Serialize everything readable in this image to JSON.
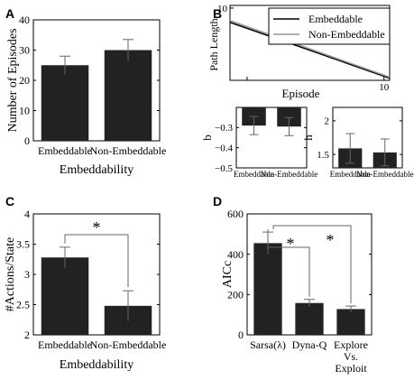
{
  "panels": [
    {
      "letter": "A"
    },
    {
      "letter": "B"
    },
    {
      "letter": "C"
    },
    {
      "letter": "D"
    }
  ],
  "chart_data": [
    {
      "id": "A",
      "type": "bar",
      "categories": [
        "Embeddable",
        "Non-Embeddable"
      ],
      "values": [
        25,
        30
      ],
      "errors": [
        3,
        3.5
      ],
      "ylim": [
        0,
        40
      ],
      "yticks": [
        0,
        10,
        20,
        30,
        40
      ],
      "ylabel": "Number of Episodes",
      "xlabel": "Embeddability"
    },
    {
      "id": "B-top",
      "type": "line",
      "scale": "log-log",
      "xlabel": "Episode",
      "ylabel": "Path Length",
      "xlim": [
        0.75,
        11
      ],
      "ylim": [
        0.75,
        11
      ],
      "yticks": [
        10
      ],
      "xticks": [
        1,
        10
      ],
      "xtick_labels": [
        "",
        "10"
      ],
      "legend_position": "top-right",
      "series": [
        {
          "name": "Embeddable",
          "color": "#000000",
          "x": [
            0.75,
            11
          ],
          "y": [
            6.0,
            0.81
          ]
        },
        {
          "name": "Non-Embeddable",
          "color": "#999999",
          "x": [
            0.75,
            11
          ],
          "y": [
            6.4,
            0.84
          ]
        }
      ]
    },
    {
      "id": "B-bottom-left",
      "type": "bar",
      "categories": [
        "Embeddable",
        "Non-Embeddable"
      ],
      "values": [
        -0.29,
        -0.295
      ],
      "errors": [
        0.045,
        0.045
      ],
      "ylim": [
        -0.5,
        -0.2
      ],
      "yticks": [
        -0.3,
        -0.4,
        -0.5
      ],
      "ylabel": "b"
    },
    {
      "id": "B-bottom-right",
      "type": "bar",
      "categories": [
        "Embeddable",
        "Non-Embeddable"
      ],
      "values": [
        1.59,
        1.53
      ],
      "errors": [
        0.22,
        0.2
      ],
      "ylim": [
        1.3,
        2.2
      ],
      "yticks": [
        1.5,
        2
      ],
      "ylabel": "h"
    },
    {
      "id": "C",
      "type": "bar",
      "categories": [
        "Embeddable",
        "Non-Embeddable"
      ],
      "values": [
        3.28,
        2.48
      ],
      "errors": [
        0.17,
        0.25
      ],
      "ylim": [
        2,
        4
      ],
      "yticks": [
        2,
        2.5,
        3,
        3.5,
        4
      ],
      "ylabel": "#Actions/State",
      "xlabel": "Embeddability",
      "significance": [
        {
          "from": 0,
          "to": 1,
          "label": "*"
        }
      ]
    },
    {
      "id": "D",
      "type": "bar",
      "categories": [
        "Sarsa(λ)",
        "Dyna-Q",
        "Explore Vs. Exploit"
      ],
      "category_lines": [
        [
          "Sarsa(λ)"
        ],
        [
          "Dyna-Q"
        ],
        [
          "Explore",
          "Vs.",
          "Exploit"
        ]
      ],
      "values": [
        455,
        158,
        128
      ],
      "errors": [
        55,
        18,
        15
      ],
      "ylim": [
        0,
        600
      ],
      "yticks": [
        0,
        200,
        400,
        600
      ],
      "ylabel": "AICc",
      "significance": [
        {
          "from": 0,
          "to": 1,
          "label": "*"
        },
        {
          "from": 0,
          "to": 2,
          "label": "*"
        }
      ]
    }
  ]
}
